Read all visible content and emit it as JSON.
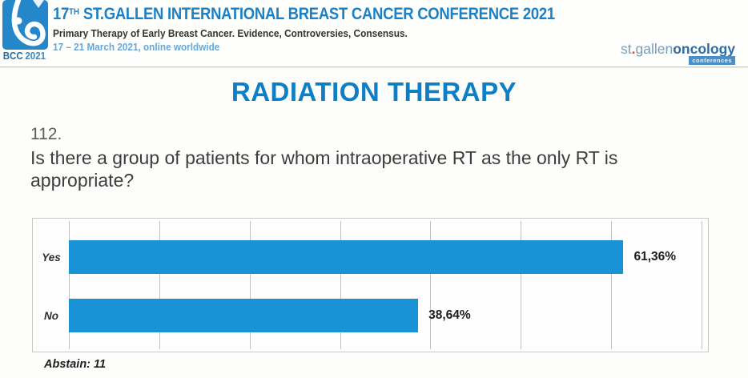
{
  "header": {
    "logo": {
      "badge_bold": "BCC",
      "badge_year": "2021"
    },
    "title": {
      "num": "17",
      "sup": "TH",
      "rest": " ST.GALLEN INTERNATIONAL BREAST CANCER CONFERENCE 2021"
    },
    "subtitle": "Primary Therapy of Early Breast Cancer. Evidence, Controversies, Consensus.",
    "dates": "17 – 21 March 2021, online worldwide",
    "brand": {
      "left": "st",
      "dot": ".",
      "mid": "gallen",
      "bold": "oncology",
      "tag": "conferences"
    }
  },
  "section": {
    "title": "RADIATION THERAPY"
  },
  "question": {
    "number": "112.",
    "text": "Is there a group of patients for whom intraoperative RT as the only RT is appropriate?"
  },
  "chart_data": {
    "type": "bar",
    "orientation": "horizontal",
    "title": "",
    "categories": [
      "Yes",
      "No"
    ],
    "values": [
      61.36,
      38.64
    ],
    "value_labels": [
      "61,36%",
      "38,64%"
    ],
    "xlim": [
      0,
      70
    ],
    "gridline_interval": 10,
    "grid": true,
    "legend": false,
    "bar_color": "#1a93d6",
    "note": "Abstain: 11"
  },
  "colors": {
    "accent_blue": "#0d7fc6",
    "header_blue": "#1b80c6",
    "dates_blue": "#68a8d8",
    "bar_blue": "#1a93d6",
    "brand_dot_orange": "#d2552a"
  }
}
